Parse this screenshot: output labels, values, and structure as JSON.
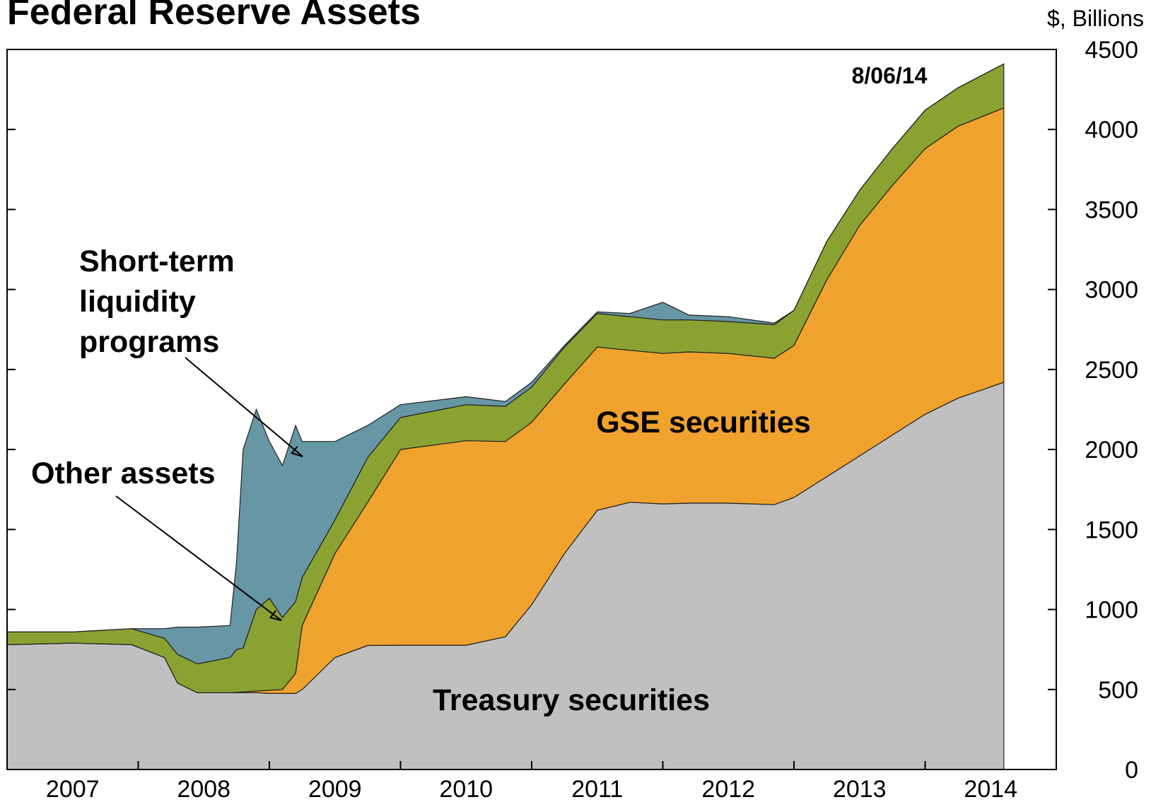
{
  "chart_data": {
    "type": "stacked_area",
    "title": "Federal Reserve Assets",
    "y_axis_label": "$, Billions",
    "date_label": "8/06/14",
    "categories": [
      "2007",
      "2008",
      "2009",
      "2010",
      "2011",
      "2012",
      "2013",
      "2014"
    ],
    "xlim": [
      2007,
      2015
    ],
    "ylim": [
      0,
      4500
    ],
    "yticks": [
      0,
      500,
      1000,
      1500,
      2000,
      2500,
      3000,
      3500,
      4000,
      4500
    ],
    "x": [
      2007.0,
      2007.5,
      2007.95,
      2008.2,
      2008.3,
      2008.45,
      2008.7,
      2008.75,
      2008.8,
      2008.9,
      2009.0,
      2009.1,
      2009.2,
      2009.25,
      2009.5,
      2009.75,
      2010.0,
      2010.5,
      2010.8,
      2011.0,
      2011.25,
      2011.5,
      2011.75,
      2012.0,
      2012.2,
      2012.5,
      2012.85,
      2013.0,
      2013.25,
      2013.5,
      2013.75,
      2014.0,
      2014.25,
      2014.6
    ],
    "series": [
      {
        "name": "Treasury securities",
        "color": "#c0c0c0",
        "values": [
          780,
          790,
          780,
          700,
          540,
          480,
          480,
          480,
          480,
          480,
          475,
          475,
          475,
          500,
          700,
          775,
          777,
          777,
          830,
          1030,
          1350,
          1620,
          1670,
          1660,
          1665,
          1665,
          1655,
          1700,
          1830,
          1960,
          2090,
          2220,
          2320,
          2420
        ]
      },
      {
        "name": "GSE securities",
        "color": "#f0a22e",
        "values": [
          0,
          0,
          0,
          0,
          0,
          0,
          0,
          2,
          5,
          10,
          20,
          25,
          125,
          400,
          650,
          895,
          1223,
          1278,
          1220,
          1140,
          1060,
          1020,
          950,
          940,
          945,
          935,
          915,
          950,
          1230,
          1440,
          1560,
          1660,
          1700,
          1715
        ]
      },
      {
        "name": "Other assets",
        "color": "#8aa232",
        "values": [
          80,
          70,
          100,
          120,
          180,
          180,
          220,
          268,
          275,
          510,
          575,
          450,
          450,
          300,
          210,
          280,
          200,
          225,
          220,
          220,
          230,
          210,
          210,
          210,
          200,
          200,
          210,
          220,
          240,
          220,
          230,
          240,
          240,
          275
        ]
      },
      {
        "name": [
          "Short-term",
          "liquidity",
          "programs"
        ],
        "color": "#6796a5",
        "values": [
          0,
          0,
          0,
          60,
          170,
          230,
          200,
          550,
          1240,
          1250,
          980,
          950,
          1100,
          850,
          490,
          200,
          80,
          50,
          30,
          30,
          10,
          10,
          20,
          110,
          30,
          30,
          10,
          0,
          0,
          0,
          0,
          0,
          0,
          0
        ]
      }
    ]
  }
}
